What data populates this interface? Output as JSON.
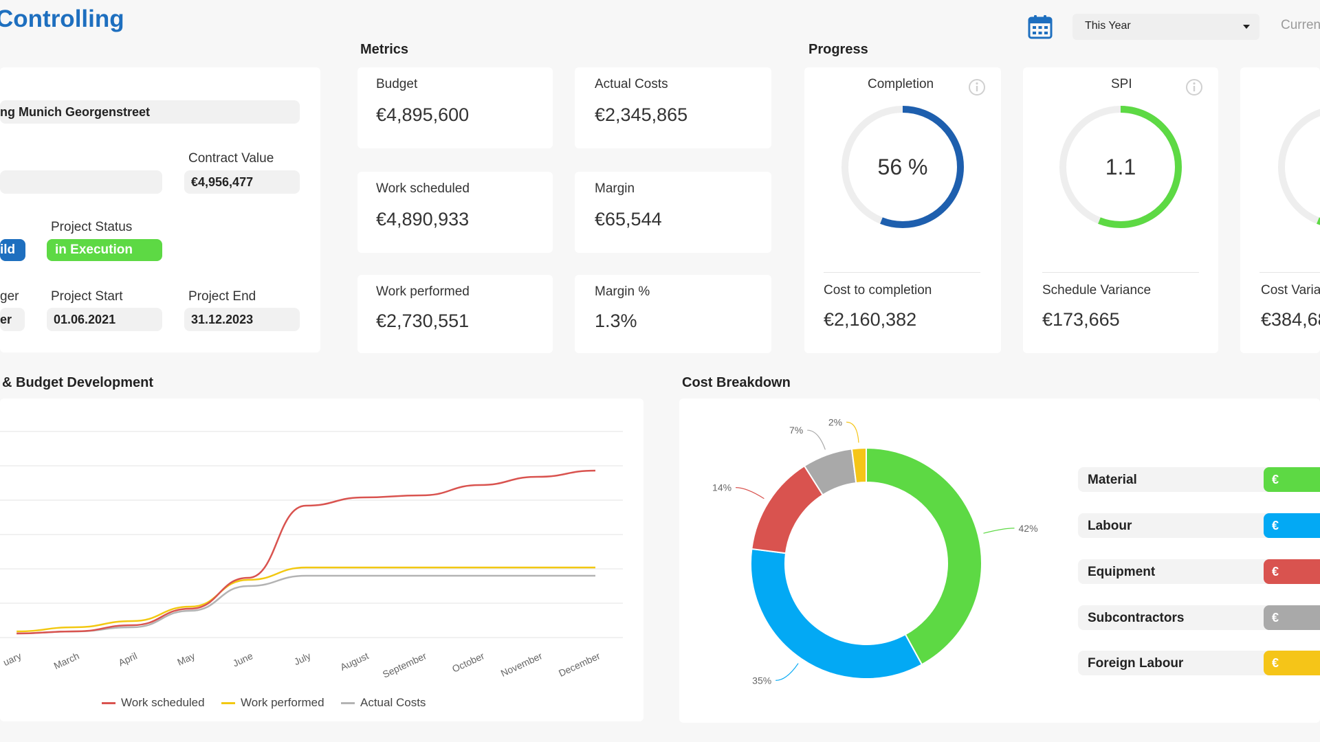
{
  "app": {
    "title": "Controlling"
  },
  "header": {
    "calendar_icon": "calendar-icon",
    "period_select": {
      "value": "This Year"
    },
    "currency_label": "Curren"
  },
  "project": {
    "name": "ng Munich Georgenstreet",
    "contract_value_label": "Contract Value",
    "contract_value": "€4,956,477",
    "field_blank": "",
    "type_badge": "ild",
    "status_label": "Project Status",
    "status_value": "in Execution",
    "manager_label": "ger",
    "manager_value": "er",
    "start_label": "Project Start",
    "start_value": "01.06.2021",
    "end_label": "Project End",
    "end_value": "31.12.2023"
  },
  "metrics": {
    "title": "Metrics",
    "cards": [
      {
        "label": "Budget",
        "value": "€4,895,600"
      },
      {
        "label": "Actual Costs",
        "value": "€2,345,865"
      },
      {
        "label": "Work scheduled",
        "value": "€4,890,933"
      },
      {
        "label": "Margin",
        "value": "€65,544"
      },
      {
        "label": "Work performed",
        "value": "€2,730,551"
      },
      {
        "label": "Margin %",
        "value": "1.3%"
      }
    ]
  },
  "progress": {
    "title": "Progress",
    "cards": [
      {
        "label": "Completion",
        "gauge_text": "56 %",
        "gauge_fraction": 0.56,
        "gauge_color": "#1e5fae",
        "sub_label": "Cost to completion",
        "sub_value": "€2,160,382"
      },
      {
        "label": "SPI",
        "gauge_text": "1.1",
        "gauge_fraction": 0.56,
        "gauge_color": "#5dd944",
        "sub_label": "Schedule Variance",
        "sub_value": "€173,665"
      },
      {
        "label": "",
        "gauge_text": "",
        "gauge_fraction": 0.56,
        "gauge_color": "#5dd944",
        "sub_label": "Cost Varia",
        "sub_value": "€384,68"
      }
    ]
  },
  "budget_chart": {
    "title": "& Budget Development",
    "chart_data": {
      "type": "line",
      "x": [
        "uary",
        "March",
        "April",
        "May",
        "June",
        "July",
        "August",
        "September",
        "October",
        "November",
        "December"
      ],
      "ylim": [
        0,
        100
      ],
      "grid": true,
      "legend_position": "bottom",
      "series": [
        {
          "name": "Work scheduled",
          "color": "#d9534f",
          "values": [
            2,
            3,
            6,
            14,
            29,
            64,
            68,
            69,
            74,
            78,
            81
          ]
        },
        {
          "name": "Work performed",
          "color": "#f2c811",
          "values": [
            3,
            5,
            8,
            15,
            28,
            34,
            34,
            34,
            34,
            34,
            34
          ]
        },
        {
          "name": "Actual Costs",
          "color": "#b3b3b3",
          "values": [
            2,
            3,
            5,
            13,
            25,
            30,
            30,
            30,
            30,
            30,
            30
          ]
        }
      ]
    }
  },
  "cost_breakdown": {
    "title": "Cost Breakdown",
    "chart_data": {
      "type": "pie",
      "labels": [
        "Material",
        "Labour",
        "Equipment",
        "Subcontractors",
        "Foreign Labour"
      ],
      "values": [
        42,
        35,
        14,
        7,
        2
      ],
      "value_labels": [
        "42%",
        "35%",
        "14%",
        "7%",
        "2%"
      ],
      "colors": [
        "#5dd944",
        "#03a9f4",
        "#d9534f",
        "#a9a9a9",
        "#f5c518"
      ]
    },
    "rows": [
      {
        "label": "Material",
        "value": "€",
        "color": "#5dd944"
      },
      {
        "label": "Labour",
        "value": "€",
        "color": "#03a9f4"
      },
      {
        "label": "Equipment",
        "value": "€",
        "color": "#d9534f"
      },
      {
        "label": "Subcontractors",
        "value": "€",
        "color": "#a9a9a9"
      },
      {
        "label": "Foreign Labour",
        "value": "€",
        "color": "#f5c518"
      }
    ]
  }
}
